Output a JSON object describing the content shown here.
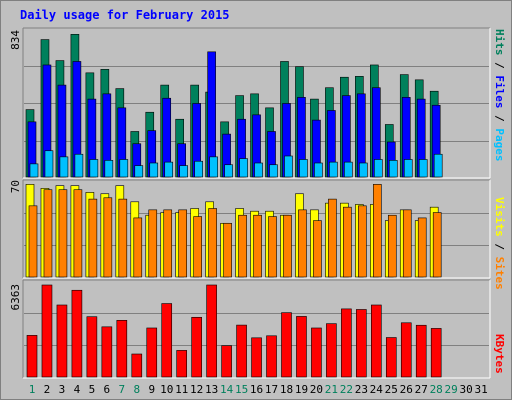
{
  "title": "Daily usage for February 2015",
  "colors": {
    "background": "#c0c0c0",
    "title": "#0000ff",
    "hits": "#00805c",
    "files": "#0000ff",
    "pages": "#00c0ff",
    "visits": "#ffff00",
    "sites": "#ff8000",
    "kbytes": "#ff0000",
    "weekend_day": "#00805c",
    "weekday": "#000000"
  },
  "chart_data": [
    {
      "type": "bar",
      "panel": "hits-files-pages",
      "title": "Daily usage for February 2015",
      "ylabel_max": "834",
      "legend": [
        "Pages",
        "Files",
        "Hits"
      ],
      "ylim": [
        0,
        834
      ],
      "categories": [
        "1",
        "2",
        "3",
        "4",
        "5",
        "6",
        "7",
        "8",
        "9",
        "10",
        "11",
        "12",
        "13",
        "14",
        "15",
        "16",
        "17",
        "18",
        "19",
        "20",
        "21",
        "22",
        "23",
        "24",
        "25",
        "26",
        "27",
        "28"
      ],
      "series": [
        {
          "name": "Hits",
          "values": [
            385,
            785,
            665,
            815,
            595,
            615,
            505,
            260,
            370,
            525,
            330,
            525,
            485,
            315,
            465,
            475,
            395,
            660,
            630,
            445,
            510,
            570,
            575,
            640,
            300,
            585,
            555,
            490
          ]
        },
        {
          "name": "Files",
          "values": [
            315,
            640,
            525,
            660,
            445,
            475,
            395,
            190,
            265,
            450,
            190,
            420,
            715,
            245,
            330,
            355,
            260,
            420,
            455,
            325,
            380,
            465,
            475,
            510,
            200,
            455,
            445,
            410
          ]
        },
        {
          "name": "Pages",
          "values": [
            75,
            150,
            115,
            130,
            100,
            95,
            100,
            65,
            80,
            85,
            65,
            90,
            115,
            70,
            105,
            80,
            70,
            120,
            100,
            80,
            85,
            85,
            80,
            100,
            95,
            100,
            100,
            130
          ]
        }
      ]
    },
    {
      "type": "bar",
      "panel": "visits-sites",
      "ylabel_max": "70",
      "legend": [
        "Sites",
        "Visits"
      ],
      "ylim": [
        0,
        70
      ],
      "categories": [
        "1",
        "2",
        "3",
        "4",
        "5",
        "6",
        "7",
        "8",
        "9",
        "10",
        "11",
        "12",
        "13",
        "14",
        "15",
        "16",
        "17",
        "18",
        "19",
        "20",
        "21",
        "22",
        "23",
        "24",
        "25",
        "26",
        "27",
        "28"
      ],
      "series": [
        {
          "name": "Visits",
          "values": [
            69,
            66,
            68,
            68,
            63,
            62,
            68,
            56,
            46,
            48,
            48,
            51,
            56,
            40,
            51,
            49,
            49,
            46,
            62,
            50,
            55,
            55,
            54,
            54,
            42,
            50,
            42,
            52
          ]
        },
        {
          "name": "Sites",
          "values": [
            53,
            65,
            65,
            65,
            58,
            59,
            58,
            44,
            50,
            50,
            50,
            45,
            51,
            40,
            46,
            46,
            45,
            46,
            50,
            42,
            58,
            52,
            53,
            69,
            46,
            50,
            44,
            48
          ]
        }
      ]
    },
    {
      "type": "bar",
      "panel": "kbytes",
      "ylabel_max": "6363",
      "legend": [
        "KBytes"
      ],
      "ylim": [
        0,
        6363
      ],
      "categories": [
        "1",
        "2",
        "3",
        "4",
        "5",
        "6",
        "7",
        "8",
        "9",
        "10",
        "11",
        "12",
        "13",
        "14",
        "15",
        "16",
        "17",
        "18",
        "19",
        "20",
        "21",
        "22",
        "23",
        "24",
        "25",
        "26",
        "27",
        "28"
      ],
      "series": [
        {
          "name": "KBytes",
          "values": [
            2880,
            6363,
            4980,
            6000,
            4170,
            3470,
            3920,
            1590,
            3390,
            5080,
            1840,
            4130,
            6363,
            2170,
            3590,
            2710,
            2850,
            4450,
            4190,
            3390,
            3690,
            4710,
            4670,
            4980,
            2730,
            3750,
            3580,
            3360
          ]
        }
      ]
    }
  ],
  "x_axis_labels": [
    "1",
    "2",
    "3",
    "4",
    "5",
    "6",
    "7",
    "8",
    "9",
    "10",
    "11",
    "12",
    "13",
    "14",
    "15",
    "16",
    "17",
    "18",
    "19",
    "20",
    "21",
    "22",
    "23",
    "24",
    "25",
    "26",
    "27",
    "28",
    "29",
    "30",
    "31"
  ],
  "weekend_days": [
    1,
    7,
    8,
    14,
    15,
    21,
    22,
    28,
    29
  ]
}
